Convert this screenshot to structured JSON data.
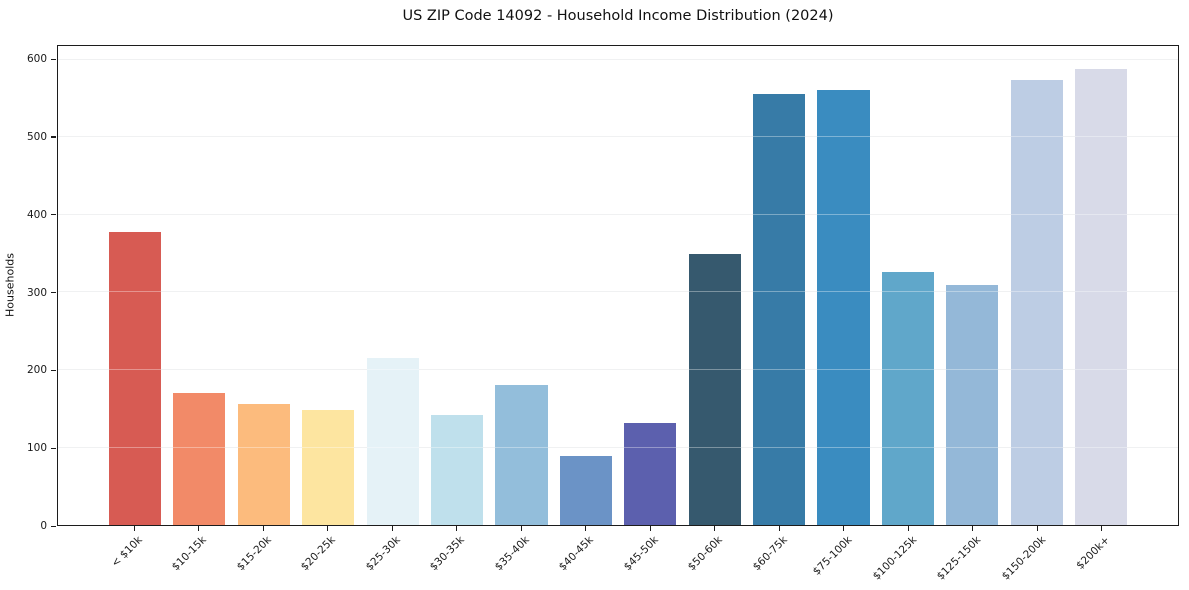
{
  "chart_data": {
    "type": "bar",
    "title": "US ZIP Code 14092 - Household Income Distribution (2024)",
    "xlabel": "",
    "ylabel": "Households",
    "categories": [
      "< $10k",
      "$10-15k",
      "$15-20k",
      "$20-25k",
      "$25-30k",
      "$30-35k",
      "$35-40k",
      "$40-45k",
      "$45-50k",
      "$50-60k",
      "$60-75k",
      "$75-100k",
      "$100-125k",
      "$125-150k",
      "$150-200k",
      "$200k+"
    ],
    "values": [
      378,
      170,
      156,
      148,
      216,
      142,
      181,
      89,
      131,
      350,
      556,
      561,
      326,
      310,
      574,
      588
    ],
    "bar_colors": [
      "#d75b53",
      "#f28a68",
      "#fcbb7d",
      "#fde5a0",
      "#e5f2f7",
      "#bfe0ec",
      "#93bedb",
      "#6b93c6",
      "#5c60ae",
      "#36596e",
      "#377ba7",
      "#3a8cc0",
      "#60a7ca",
      "#94b8d8",
      "#bdcde4",
      "#d8dae8"
    ],
    "yticks": [
      0,
      100,
      200,
      300,
      400,
      500,
      600
    ],
    "ylim": [
      0,
      618
    ],
    "grid": "horizontal-only",
    "legend": "none",
    "plot_background": "#ffffff",
    "spine_color": "#1c1c1c",
    "grid_color": "#e8eaec",
    "tick_label_color": "#1a1a1a",
    "x_tick_rotation_deg": 45
  }
}
